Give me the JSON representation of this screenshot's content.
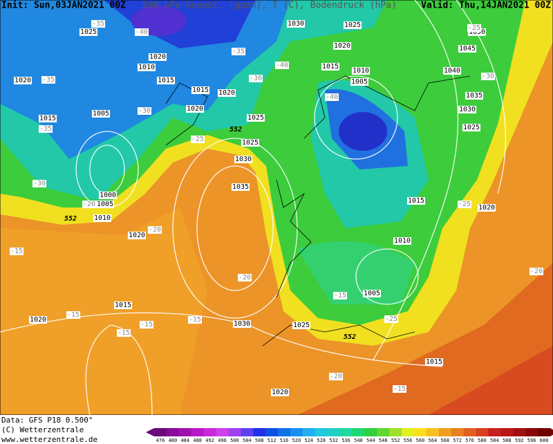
{
  "header": {
    "init": "Init: Sun,03JAN2021 00Z",
    "title": "500 hPa Geopot. (gpdm), T (C), Bodendruck (hPa)",
    "valid": "Valid: Thu,14JAN2021 00Z"
  },
  "map": {
    "isobar_labels": [
      "1025",
      "1030",
      "1025",
      "1050",
      "1020",
      "1020",
      "1045",
      "1010",
      "1015",
      "1010",
      "1040",
      "1020",
      "1015",
      "1005",
      "1015",
      "1020",
      "1035",
      "1005",
      "1020",
      "1030",
      "1015",
      "1025",
      "1025",
      "1025",
      "1030",
      "1000",
      "1005",
      "1010",
      "1035",
      "1015",
      "1020",
      "1020",
      "1010",
      "1005",
      "1015",
      "1020",
      "1030",
      "1025",
      "1015",
      "1020"
    ],
    "temperature_labels": [
      "-35",
      "-40",
      "-35",
      "-40",
      "-35",
      "-30",
      "-40",
      "-30",
      "-35",
      "-25",
      "-30",
      "-20",
      "-25",
      "-20",
      "-15",
      "-20",
      "-15",
      "-15",
      "-15",
      "-15",
      "-15",
      "-25",
      "-20",
      "-15",
      "-20",
      "-30",
      "-25"
    ],
    "geopotential_labels": [
      "552",
      "552",
      "552"
    ]
  },
  "footer": {
    "data": "Data: GFS P18 0.500°",
    "copyright": "(C) Wetterzentrale",
    "url": "www.wetterzentrale.de"
  },
  "colorbar": {
    "ticks": [
      476,
      480,
      484,
      488,
      492,
      496,
      500,
      504,
      508,
      512,
      516,
      520,
      524,
      528,
      532,
      536,
      540,
      544,
      548,
      552,
      556,
      560,
      564,
      568,
      572,
      576,
      580,
      584,
      588,
      592,
      596,
      600
    ],
    "colors": [
      "#6a0a7a",
      "#8a0a9a",
      "#a010b0",
      "#b818c8",
      "#c828d8",
      "#d040e8",
      "#a040f0",
      "#6040f0",
      "#2030e8",
      "#1050e0",
      "#1070e8",
      "#1890f0",
      "#20b0f0",
      "#20c8e0",
      "#20d0c0",
      "#20d8a0",
      "#20d870",
      "#30d040",
      "#60d830",
      "#a0e028",
      "#e0f020",
      "#f8e020",
      "#f8c020",
      "#f0a020",
      "#e88020",
      "#e06020",
      "#d84020",
      "#c82020",
      "#b81818",
      "#a01010",
      "#880808",
      "#700000"
    ]
  }
}
